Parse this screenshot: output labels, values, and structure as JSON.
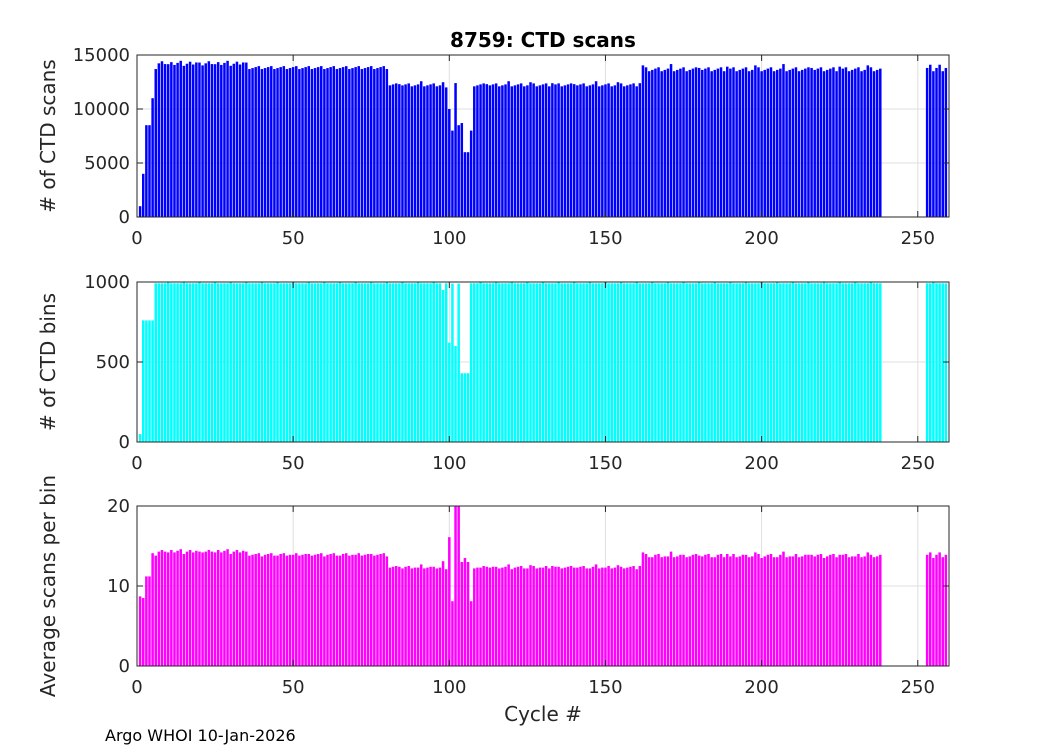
{
  "footer": "Argo WHOI 10-Jan-2026",
  "chart_data": [
    {
      "type": "bar",
      "title": "8759: CTD scans",
      "xlabel": "",
      "ylabel": "# of CTD scans",
      "xlim": [
        0,
        260
      ],
      "ylim": [
        0,
        15000
      ],
      "xticks": [
        0,
        50,
        100,
        150,
        200,
        250
      ],
      "yticks": [
        0,
        5000,
        10000,
        15000
      ],
      "color": "#0000ff",
      "grid": true,
      "x": [],
      "values": []
    },
    {
      "type": "bar",
      "title": "",
      "xlabel": "",
      "ylabel": "# of CTD bins",
      "xlim": [
        0,
        260
      ],
      "ylim": [
        0,
        1000
      ],
      "xticks": [
        0,
        50,
        100,
        150,
        200,
        250
      ],
      "yticks": [
        0,
        500,
        1000
      ],
      "color": "#00ffff",
      "grid": true,
      "x": [],
      "values": []
    },
    {
      "type": "bar",
      "title": "",
      "xlabel": "Cycle #",
      "ylabel": "Average scans per bin",
      "xlim": [
        0,
        260
      ],
      "ylim": [
        0,
        20
      ],
      "xticks": [
        0,
        50,
        100,
        150,
        200,
        250
      ],
      "yticks": [
        0,
        10,
        20
      ],
      "color": "#ff00ff",
      "grid": true,
      "x": [],
      "values": []
    }
  ]
}
